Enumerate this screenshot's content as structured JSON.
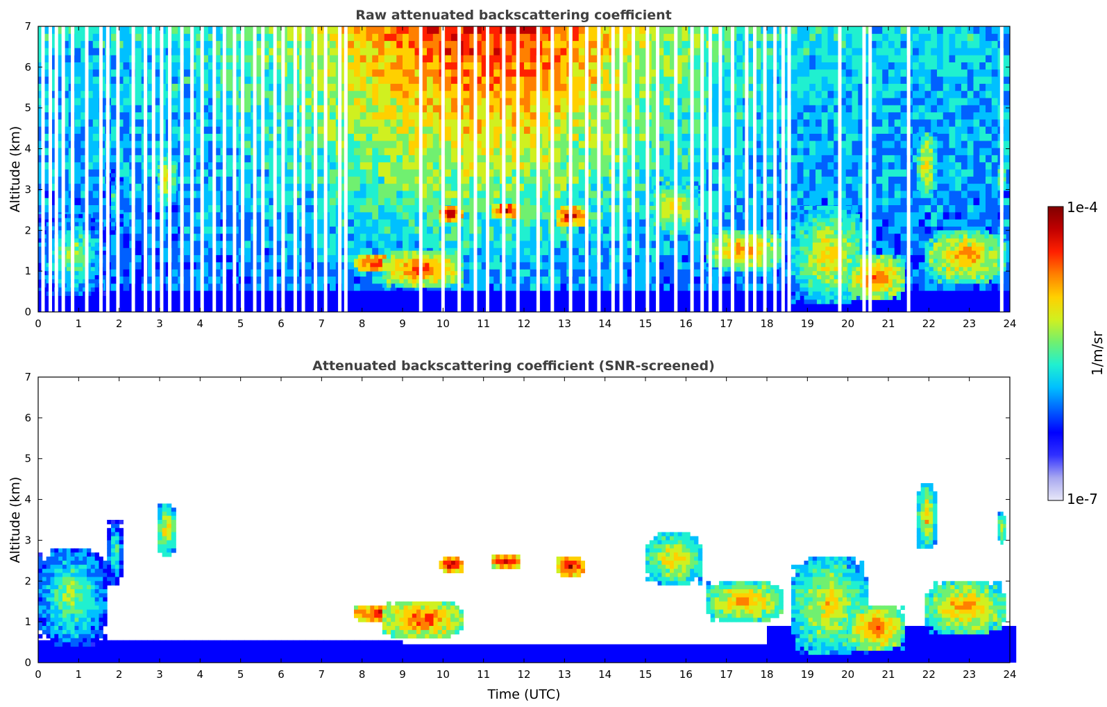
{
  "chart_data": [
    {
      "type": "heatmap",
      "title": "Raw attenuated backscattering coefficient",
      "xlabel": "",
      "ylabel": "Altitude (km)",
      "xlim": [
        0,
        24
      ],
      "ylim": [
        0,
        7
      ],
      "xticks": [
        "0",
        "1",
        "2",
        "3",
        "4",
        "5",
        "6",
        "7",
        "8",
        "9",
        "10",
        "11",
        "12",
        "13",
        "14",
        "15",
        "16",
        "17",
        "18",
        "19",
        "20",
        "21",
        "22",
        "23",
        "24"
      ],
      "yticks": [
        "0",
        "1",
        "2",
        "3",
        "4",
        "5",
        "6",
        "7"
      ],
      "colorscale": "jet",
      "gaps_hours": [
        0.12,
        0.3,
        0.45,
        0.62,
        0.85,
        1.2,
        1.55,
        1.72,
        1.97,
        2.35,
        2.65,
        2.85,
        3.05,
        3.25,
        3.55,
        3.8,
        4.05,
        4.35,
        4.6,
        4.85,
        5.05,
        5.35,
        5.55,
        5.85,
        6.05,
        6.35,
        6.55,
        6.85,
        7.1,
        7.45,
        7.6,
        9.45,
        10.0,
        10.4,
        10.8,
        11.1,
        11.5,
        11.85,
        12.35,
        12.7,
        13.15,
        13.55,
        13.85,
        14.2,
        14.4,
        14.7,
        15.05,
        15.3,
        15.75,
        16.15,
        16.4,
        16.6,
        16.85,
        17.15,
        17.5,
        17.7,
        17.95,
        18.2,
        18.4,
        18.55,
        19.8,
        20.4,
        20.55,
        21.5,
        23.8
      ],
      "features": [
        {
          "x0": 0.0,
          "x1": 1.7,
          "z0": 0.4,
          "z1": 2.4,
          "value": 0.6
        },
        {
          "x0": 1.7,
          "x1": 2.1,
          "z0": 1.9,
          "z1": 3.5,
          "value": 0.55
        },
        {
          "x0": 2.95,
          "x1": 3.4,
          "z0": 2.6,
          "z1": 3.9,
          "value": 0.72
        },
        {
          "x0": 7.8,
          "x1": 9.2,
          "z0": 1.0,
          "z1": 1.4,
          "value": 0.95
        },
        {
          "x0": 8.5,
          "x1": 10.5,
          "z0": 0.6,
          "z1": 1.5,
          "value": 0.85
        },
        {
          "x0": 9.9,
          "x1": 10.5,
          "z0": 2.2,
          "z1": 2.6,
          "value": 0.97
        },
        {
          "x0": 11.2,
          "x1": 11.9,
          "z0": 2.3,
          "z1": 2.65,
          "value": 0.97
        },
        {
          "x0": 12.8,
          "x1": 13.5,
          "z0": 2.1,
          "z1": 2.6,
          "value": 0.95
        },
        {
          "x0": 15.0,
          "x1": 16.4,
          "z0": 1.9,
          "z1": 3.2,
          "value": 0.72
        },
        {
          "x0": 16.5,
          "x1": 18.4,
          "z0": 1.0,
          "z1": 2.0,
          "value": 0.78
        },
        {
          "x0": 18.6,
          "x1": 20.5,
          "z0": 0.2,
          "z1": 2.6,
          "value": 0.7
        },
        {
          "x0": 20.0,
          "x1": 21.4,
          "z0": 0.3,
          "z1": 1.4,
          "value": 0.82
        },
        {
          "x0": 21.7,
          "x1": 22.2,
          "z0": 2.8,
          "z1": 4.4,
          "value": 0.72
        },
        {
          "x0": 21.9,
          "x1": 23.9,
          "z0": 0.7,
          "z1": 2.0,
          "value": 0.78
        },
        {
          "x0": 23.7,
          "x1": 23.9,
          "z0": 2.9,
          "z1": 3.7,
          "value": 0.7
        }
      ]
    },
    {
      "type": "heatmap",
      "title": "Attenuated backscattering coefficient (SNR-screened)",
      "xlabel": "Time (UTC)",
      "ylabel": "Altitude (km)",
      "xlim": [
        0,
        24
      ],
      "ylim": [
        0,
        7
      ],
      "xticks": [
        "0",
        "1",
        "2",
        "3",
        "4",
        "5",
        "6",
        "7",
        "8",
        "9",
        "10",
        "11",
        "12",
        "13",
        "14",
        "15",
        "16",
        "17",
        "18",
        "19",
        "20",
        "21",
        "22",
        "23",
        "24"
      ],
      "yticks": [
        "0",
        "1",
        "2",
        "3",
        "4",
        "5",
        "6",
        "7"
      ],
      "colorscale": "jet",
      "features": [
        {
          "x0": 0.0,
          "x1": 1.7,
          "z0": 0.4,
          "z1": 2.8,
          "value": 0.6
        },
        {
          "x0": 1.7,
          "x1": 2.1,
          "z0": 1.9,
          "z1": 3.5,
          "value": 0.55
        },
        {
          "x0": 2.95,
          "x1": 3.4,
          "z0": 2.6,
          "z1": 3.9,
          "value": 0.72
        },
        {
          "x0": 7.8,
          "x1": 9.2,
          "z0": 1.0,
          "z1": 1.4,
          "value": 0.95
        },
        {
          "x0": 8.5,
          "x1": 10.5,
          "z0": 0.6,
          "z1": 1.5,
          "value": 0.85
        },
        {
          "x0": 9.9,
          "x1": 10.5,
          "z0": 2.2,
          "z1": 2.6,
          "value": 0.97
        },
        {
          "x0": 11.2,
          "x1": 11.9,
          "z0": 2.3,
          "z1": 2.65,
          "value": 0.97
        },
        {
          "x0": 12.8,
          "x1": 13.5,
          "z0": 2.1,
          "z1": 2.6,
          "value": 0.95
        },
        {
          "x0": 15.0,
          "x1": 16.4,
          "z0": 1.9,
          "z1": 3.2,
          "value": 0.72
        },
        {
          "x0": 16.5,
          "x1": 18.4,
          "z0": 1.0,
          "z1": 2.0,
          "value": 0.78
        },
        {
          "x0": 18.6,
          "x1": 20.5,
          "z0": 0.2,
          "z1": 2.6,
          "value": 0.7
        },
        {
          "x0": 20.0,
          "x1": 21.4,
          "z0": 0.3,
          "z1": 1.4,
          "value": 0.82
        },
        {
          "x0": 21.7,
          "x1": 22.2,
          "z0": 2.8,
          "z1": 4.4,
          "value": 0.72
        },
        {
          "x0": 21.9,
          "x1": 23.9,
          "z0": 0.7,
          "z1": 2.0,
          "value": 0.78
        },
        {
          "x0": 23.7,
          "x1": 23.9,
          "z0": 2.9,
          "z1": 3.7,
          "value": 0.7
        }
      ]
    }
  ],
  "colorbar": {
    "label": "1/m/sr",
    "max_label": "1e-4",
    "min_label": "1e-7",
    "colors": [
      "#e8e8f8",
      "#a8a8f0",
      "#3030ff",
      "#0000ff",
      "#0060ff",
      "#00c0ff",
      "#20f0d0",
      "#70f070",
      "#d0f020",
      "#ffd000",
      "#ff8000",
      "#ff2000",
      "#c00000",
      "#800000"
    ]
  }
}
